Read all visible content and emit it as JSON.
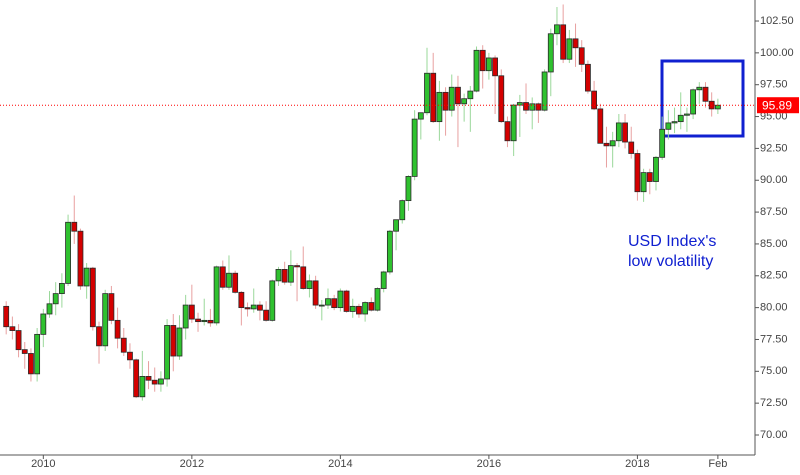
{
  "chart_data": {
    "type": "candlestick",
    "annotation": "USD Index's low volatility",
    "last_price": 95.89,
    "colors": {
      "up": "#2fc12f",
      "down": "#d40000",
      "border": "#2a2a2a",
      "last_price": "#ff0000",
      "annotation": "#1020d0"
    },
    "xlim": [
      "2009-06",
      "2019-08"
    ],
    "xticks": [
      {
        "value": "2010-01",
        "label": "2010"
      },
      {
        "value": "2012-01",
        "label": "2012"
      },
      {
        "value": "2014-01",
        "label": "2014"
      },
      {
        "value": "2016-01",
        "label": "2016"
      },
      {
        "value": "2018-01",
        "label": "2018"
      },
      {
        "value": "2019-02",
        "label": "Feb"
      }
    ],
    "ylim": [
      68.43,
      104.15
    ],
    "yticks": [
      {
        "value": 70,
        "label": "70.00"
      },
      {
        "value": 72.5,
        "label": "72.50"
      },
      {
        "value": 75,
        "label": "75.00"
      },
      {
        "value": 77.5,
        "label": "77.50"
      },
      {
        "value": 80,
        "label": "80.00"
      },
      {
        "value": 82.5,
        "label": "82.50"
      },
      {
        "value": 85,
        "label": "85.00"
      },
      {
        "value": 87.5,
        "label": "87.50"
      },
      {
        "value": 90,
        "label": "90.00"
      },
      {
        "value": 92.5,
        "label": "92.50"
      },
      {
        "value": 95,
        "label": "95.00"
      },
      {
        "value": 97.5,
        "label": "97.50"
      },
      {
        "value": 100,
        "label": "100.00"
      },
      {
        "value": 102.5,
        "label": "102.50"
      }
    ],
    "x": [
      "2009-07",
      "2009-08",
      "2009-09",
      "2009-10",
      "2009-11",
      "2009-12",
      "2010-01",
      "2010-02",
      "2010-03",
      "2010-04",
      "2010-05",
      "2010-06",
      "2010-07",
      "2010-08",
      "2010-09",
      "2010-10",
      "2010-11",
      "2010-12",
      "2011-01",
      "2011-02",
      "2011-03",
      "2011-04",
      "2011-05",
      "2011-06",
      "2011-07",
      "2011-08",
      "2011-09",
      "2011-10",
      "2011-11",
      "2011-12",
      "2012-01",
      "2012-02",
      "2012-03",
      "2012-04",
      "2012-05",
      "2012-06",
      "2012-07",
      "2012-08",
      "2012-09",
      "2012-10",
      "2012-11",
      "2012-12",
      "2013-01",
      "2013-02",
      "2013-03",
      "2013-04",
      "2013-05",
      "2013-06",
      "2013-07",
      "2013-08",
      "2013-09",
      "2013-10",
      "2013-11",
      "2013-12",
      "2014-01",
      "2014-02",
      "2014-03",
      "2014-04",
      "2014-05",
      "2014-06",
      "2014-07",
      "2014-08",
      "2014-09",
      "2014-10",
      "2014-11",
      "2014-12",
      "2015-01",
      "2015-02",
      "2015-03",
      "2015-04",
      "2015-05",
      "2015-06",
      "2015-07",
      "2015-08",
      "2015-09",
      "2015-10",
      "2015-11",
      "2015-12",
      "2016-01",
      "2016-02",
      "2016-03",
      "2016-04",
      "2016-05",
      "2016-06",
      "2016-07",
      "2016-08",
      "2016-09",
      "2016-10",
      "2016-11",
      "2016-12",
      "2017-01",
      "2017-02",
      "2017-03",
      "2017-04",
      "2017-05",
      "2017-06",
      "2017-07",
      "2017-08",
      "2017-09",
      "2017-10",
      "2017-11",
      "2017-12",
      "2018-01",
      "2018-02",
      "2018-03",
      "2018-04",
      "2018-05",
      "2018-06",
      "2018-07",
      "2018-08",
      "2018-09",
      "2018-10",
      "2018-11",
      "2018-12",
      "2019-01",
      "2019-02"
    ],
    "ohlc": [
      [
        80.1,
        80.5,
        77.9,
        78.5
      ],
      [
        78.5,
        79.3,
        77.5,
        78.2
      ],
      [
        78.2,
        78.7,
        76.1,
        76.7
      ],
      [
        76.7,
        77.3,
        75.2,
        76.4
      ],
      [
        76.4,
        76.8,
        74.2,
        74.8
      ],
      [
        74.8,
        78.4,
        74.2,
        77.9
      ],
      [
        77.9,
        79.9,
        76.9,
        79.5
      ],
      [
        79.5,
        81.3,
        79.2,
        80.3
      ],
      [
        80.3,
        82.0,
        79.4,
        81.1
      ],
      [
        81.1,
        82.7,
        80.0,
        81.9
      ],
      [
        81.9,
        87.3,
        81.7,
        86.7
      ],
      [
        86.7,
        88.8,
        85.0,
        86.0
      ],
      [
        86.0,
        86.2,
        81.4,
        81.7
      ],
      [
        81.7,
        83.5,
        80.7,
        83.1
      ],
      [
        83.1,
        83.2,
        78.2,
        78.5
      ],
      [
        78.5,
        78.9,
        75.6,
        77.0
      ],
      [
        77.0,
        81.4,
        76.6,
        81.1
      ],
      [
        81.1,
        81.7,
        78.7,
        79.0
      ],
      [
        79.0,
        80.0,
        76.8,
        77.6
      ],
      [
        77.6,
        78.4,
        76.2,
        76.5
      ],
      [
        76.5,
        77.2,
        75.2,
        75.9
      ],
      [
        75.9,
        76.0,
        72.9,
        73.0
      ],
      [
        73.0,
        76.6,
        72.7,
        74.6
      ],
      [
        74.6,
        75.8,
        73.6,
        74.3
      ],
      [
        74.3,
        75.3,
        73.4,
        74.0
      ],
      [
        74.0,
        75.0,
        73.4,
        74.4
      ],
      [
        74.4,
        79.1,
        73.8,
        78.6
      ],
      [
        78.6,
        79.5,
        75.0,
        76.2
      ],
      [
        76.2,
        79.4,
        75.9,
        78.4
      ],
      [
        78.4,
        81.0,
        77.5,
        80.2
      ],
      [
        80.2,
        81.8,
        78.8,
        79.1
      ],
      [
        79.1,
        79.6,
        78.1,
        78.9
      ],
      [
        78.9,
        80.7,
        78.6,
        79.0
      ],
      [
        79.0,
        79.9,
        78.5,
        78.8
      ],
      [
        78.8,
        83.3,
        78.6,
        83.2
      ],
      [
        83.2,
        83.7,
        81.4,
        81.6
      ],
      [
        81.6,
        84.1,
        81.4,
        82.7
      ],
      [
        82.7,
        82.9,
        81.1,
        81.2
      ],
      [
        81.2,
        81.3,
        78.6,
        80.0
      ],
      [
        80.0,
        80.4,
        79.3,
        79.9
      ],
      [
        79.9,
        81.5,
        79.6,
        80.2
      ],
      [
        80.2,
        80.5,
        79.0,
        79.8
      ],
      [
        79.8,
        80.5,
        78.9,
        79.0
      ],
      [
        79.0,
        82.2,
        78.9,
        82.1
      ],
      [
        82.1,
        83.2,
        81.7,
        83.0
      ],
      [
        83.0,
        83.6,
        81.8,
        82.0
      ],
      [
        82.0,
        84.5,
        81.7,
        83.3
      ],
      [
        83.3,
        83.5,
        80.5,
        83.2
      ],
      [
        83.2,
        84.8,
        81.4,
        81.5
      ],
      [
        81.5,
        82.6,
        80.8,
        82.1
      ],
      [
        82.1,
        82.5,
        79.9,
        80.2
      ],
      [
        80.2,
        80.6,
        79.0,
        80.2
      ],
      [
        80.2,
        81.5,
        79.9,
        80.7
      ],
      [
        80.7,
        81.0,
        79.8,
        80.0
      ],
      [
        80.0,
        81.5,
        79.7,
        81.3
      ],
      [
        81.3,
        81.4,
        79.6,
        79.7
      ],
      [
        79.7,
        80.7,
        79.2,
        80.1
      ],
      [
        80.1,
        80.3,
        79.2,
        79.5
      ],
      [
        79.5,
        80.5,
        78.9,
        80.4
      ],
      [
        80.4,
        80.8,
        79.7,
        79.8
      ],
      [
        79.8,
        81.6,
        79.7,
        81.5
      ],
      [
        81.5,
        82.9,
        81.2,
        82.8
      ],
      [
        82.8,
        86.1,
        82.6,
        86.0
      ],
      [
        86.0,
        86.9,
        84.5,
        86.9
      ],
      [
        86.9,
        88.5,
        86.6,
        88.4
      ],
      [
        88.4,
        90.4,
        87.6,
        90.3
      ],
      [
        90.3,
        95.5,
        90.0,
        94.8
      ],
      [
        94.8,
        95.3,
        93.2,
        95.3
      ],
      [
        95.3,
        100.4,
        95.1,
        98.4
      ],
      [
        98.4,
        100.0,
        94.5,
        94.6
      ],
      [
        94.6,
        97.8,
        93.1,
        96.9
      ],
      [
        96.9,
        97.3,
        93.5,
        95.5
      ],
      [
        95.5,
        98.3,
        95.0,
        97.3
      ],
      [
        97.3,
        98.2,
        92.6,
        96.0
      ],
      [
        96.0,
        96.8,
        94.6,
        96.4
      ],
      [
        96.4,
        97.4,
        93.8,
        97.0
      ],
      [
        97.0,
        100.5,
        96.9,
        100.2
      ],
      [
        100.2,
        100.6,
        97.2,
        98.6
      ],
      [
        98.6,
        100.0,
        97.9,
        99.6
      ],
      [
        99.6,
        99.8,
        95.2,
        98.2
      ],
      [
        98.2,
        98.7,
        94.5,
        94.6
      ],
      [
        94.6,
        95.0,
        92.6,
        93.1
      ],
      [
        93.1,
        96.0,
        91.9,
        95.9
      ],
      [
        95.9,
        96.7,
        93.4,
        96.1
      ],
      [
        96.1,
        97.6,
        95.2,
        95.5
      ],
      [
        95.5,
        96.5,
        94.0,
        96.0
      ],
      [
        96.0,
        96.1,
        94.5,
        95.5
      ],
      [
        95.5,
        98.7,
        95.4,
        98.5
      ],
      [
        98.5,
        101.9,
        96.6,
        101.5
      ],
      [
        101.5,
        103.6,
        100.6,
        102.2
      ],
      [
        102.2,
        103.8,
        99.2,
        99.5
      ],
      [
        99.5,
        101.8,
        99.2,
        101.1
      ],
      [
        101.1,
        102.3,
        98.9,
        100.4
      ],
      [
        100.4,
        101.0,
        98.5,
        99.1
      ],
      [
        99.1,
        99.4,
        96.8,
        97.0
      ],
      [
        97.0,
        97.8,
        95.5,
        95.6
      ],
      [
        95.6,
        96.0,
        92.9,
        92.9
      ],
      [
        92.9,
        94.2,
        91.0,
        92.7
      ],
      [
        92.7,
        93.8,
        91.0,
        93.1
      ],
      [
        93.1,
        95.2,
        92.6,
        94.5
      ],
      [
        94.5,
        95.2,
        92.5,
        93.0
      ],
      [
        93.0,
        94.2,
        91.7,
        92.1
      ],
      [
        92.1,
        92.4,
        88.4,
        89.1
      ],
      [
        89.1,
        90.9,
        88.3,
        90.6
      ],
      [
        90.6,
        90.9,
        88.9,
        89.9
      ],
      [
        89.9,
        91.9,
        89.2,
        91.8
      ],
      [
        91.8,
        95.0,
        91.6,
        94.0
      ],
      [
        94.0,
        95.5,
        93.2,
        94.5
      ],
      [
        94.5,
        95.7,
        93.7,
        94.6
      ],
      [
        94.6,
        96.9,
        94.0,
        95.1
      ],
      [
        95.1,
        95.7,
        93.8,
        95.2
      ],
      [
        95.2,
        97.2,
        94.8,
        97.1
      ],
      [
        97.1,
        97.7,
        96.0,
        97.3
      ],
      [
        97.3,
        97.7,
        95.7,
        96.2
      ],
      [
        96.2,
        96.9,
        95.0,
        95.6
      ],
      [
        95.6,
        96.4,
        95.2,
        95.89
      ]
    ]
  }
}
